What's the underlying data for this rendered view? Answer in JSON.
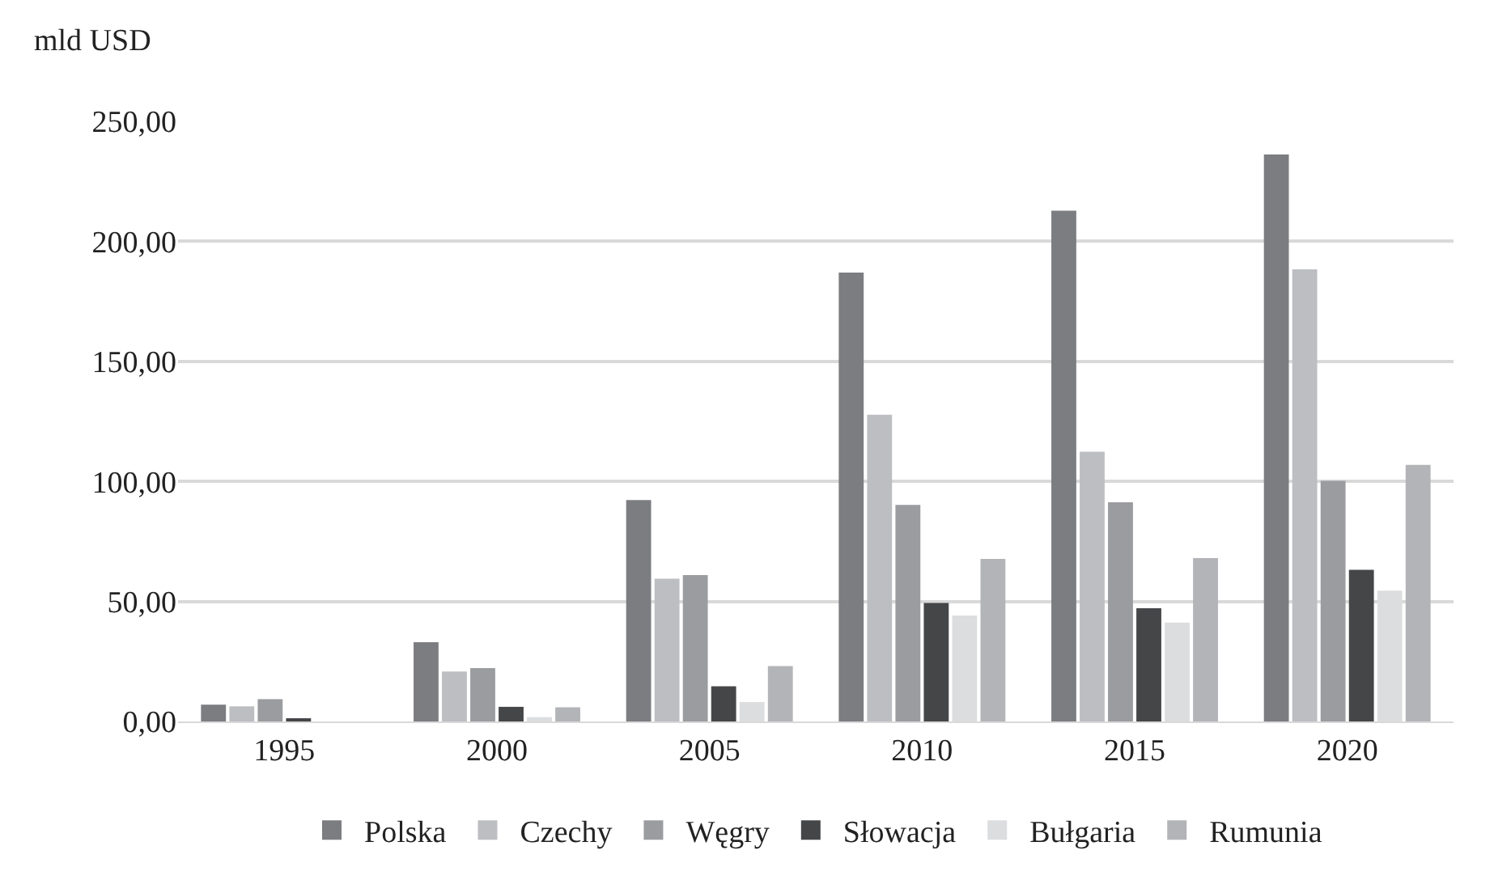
{
  "chart_data": {
    "type": "bar",
    "ylabel": "mld USD",
    "categories": [
      "1995",
      "2000",
      "2005",
      "2010",
      "2015",
      "2020"
    ],
    "series": [
      {
        "name": "Polska",
        "color": "#7c7d81",
        "values": [
          7.0,
          33.0,
          92.2,
          187.0,
          212.8,
          236.2
        ]
      },
      {
        "name": "Czechy",
        "color": "#bdbec2",
        "values": [
          6.3,
          20.8,
          59.5,
          127.8,
          112.4,
          188.3
        ]
      },
      {
        "name": "Węgry",
        "color": "#9b9c9f",
        "values": [
          9.3,
          22.2,
          61.0,
          90.2,
          91.3,
          100.2
        ]
      },
      {
        "name": "Słowacja",
        "color": "#454648",
        "values": [
          1.0,
          6.1,
          14.7,
          49.4,
          47.2,
          63.2
        ]
      },
      {
        "name": "Bułgaria",
        "color": "#dcdddf",
        "values": [
          0,
          1.8,
          8.1,
          44.1,
          41.2,
          54.5
        ]
      },
      {
        "name": "Rumunia",
        "color": "#b3b4b7",
        "values": [
          0,
          5.9,
          23.1,
          67.7,
          68.1,
          106.9
        ]
      }
    ],
    "ylim": [
      0,
      250
    ],
    "yticks": [
      {
        "value": 0,
        "label": "0,00"
      },
      {
        "value": 50,
        "label": "50,00"
      },
      {
        "value": 100,
        "label": "100,00"
      },
      {
        "value": 150,
        "label": "150,00"
      },
      {
        "value": 200,
        "label": "200,00"
      },
      {
        "value": 250,
        "label": "250,00"
      }
    ],
    "grid": "y",
    "legend": "bottom"
  }
}
